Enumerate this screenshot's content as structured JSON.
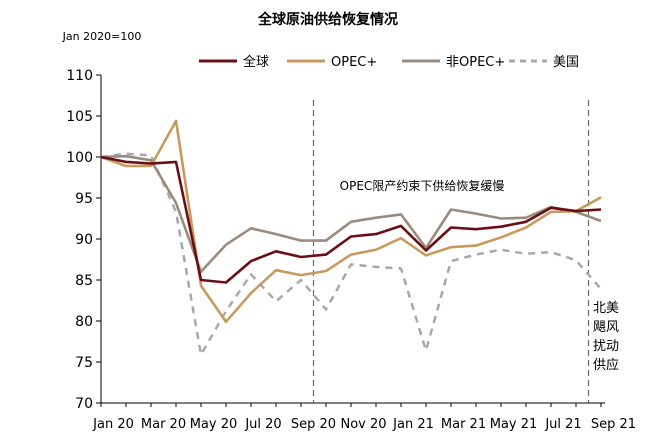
{
  "chart_data": {
    "type": "line",
    "title": "全球原油供给恢复情况",
    "subtitle": "Jan 2020=100",
    "ylim": [
      70,
      110
    ],
    "yticks": [
      "70",
      "75",
      "80",
      "85",
      "90",
      "95",
      "100",
      "105",
      "110"
    ],
    "xtick_labels": [
      "Jan 20",
      "Mar 20",
      "May 20",
      "Jul 20",
      "Sep 20",
      "Nov 20",
      "Jan 21",
      "Mar 21",
      "May 21",
      "Jul 21",
      "Sep 21"
    ],
    "x": [
      "Jan 20",
      "Feb 20",
      "Mar 20",
      "Apr 20",
      "May 20",
      "Jun 20",
      "Jul 20",
      "Aug 20",
      "Sep 20",
      "Oct 20",
      "Nov 20",
      "Dec 20",
      "Jan 21",
      "Feb 21",
      "Mar 21",
      "Apr 21",
      "May 21",
      "Jun 21",
      "Jul 21",
      "Aug 21",
      "Sep 21"
    ],
    "series": [
      {
        "name": "全球",
        "color": "#6b0f16",
        "dash": "solid",
        "values": [
          100.0,
          99.4,
          99.2,
          99.4,
          85.0,
          84.7,
          87.3,
          88.5,
          87.8,
          88.1,
          90.3,
          90.6,
          91.6,
          88.6,
          91.4,
          91.2,
          91.5,
          92.1,
          93.8,
          93.4,
          93.6
        ]
      },
      {
        "name": "OPEC+",
        "color": "#c89a5e",
        "dash": "solid",
        "values": [
          100.0,
          98.9,
          98.9,
          104.4,
          84.3,
          79.9,
          83.4,
          86.2,
          85.6,
          86.1,
          88.1,
          88.7,
          90.1,
          88.0,
          89.0,
          89.2,
          90.2,
          91.4,
          93.3,
          93.4,
          95.1
        ]
      },
      {
        "name": "非OPEC+",
        "color": "#9b8b7e",
        "dash": "solid",
        "values": [
          100.0,
          100.1,
          99.6,
          94.4,
          86.0,
          89.3,
          91.3,
          90.6,
          89.8,
          89.8,
          92.1,
          92.6,
          93.0,
          88.9,
          93.6,
          93.1,
          92.5,
          92.6,
          93.9,
          93.3,
          92.2
        ]
      },
      {
        "name": "美国",
        "color": "#a8a8a8",
        "dash": "dashed",
        "values": [
          100.0,
          100.4,
          100.2,
          93.3,
          75.9,
          81.2,
          85.7,
          82.4,
          85.0,
          81.4,
          86.9,
          86.6,
          86.4,
          76.4,
          87.3,
          88.1,
          88.7,
          88.2,
          88.4,
          87.4,
          83.9
        ]
      }
    ],
    "vlines": [
      {
        "at": "Sep 20",
        "style": "dashed"
      },
      {
        "at": "Aug 21",
        "style": "dashed"
      }
    ],
    "annotations": [
      {
        "text": "OPEC限产约束下供给恢复缓慢"
      },
      {
        "text": "北美\n飓风\n扰动\n供应"
      }
    ],
    "legend_position": "top-right",
    "grid": false
  }
}
